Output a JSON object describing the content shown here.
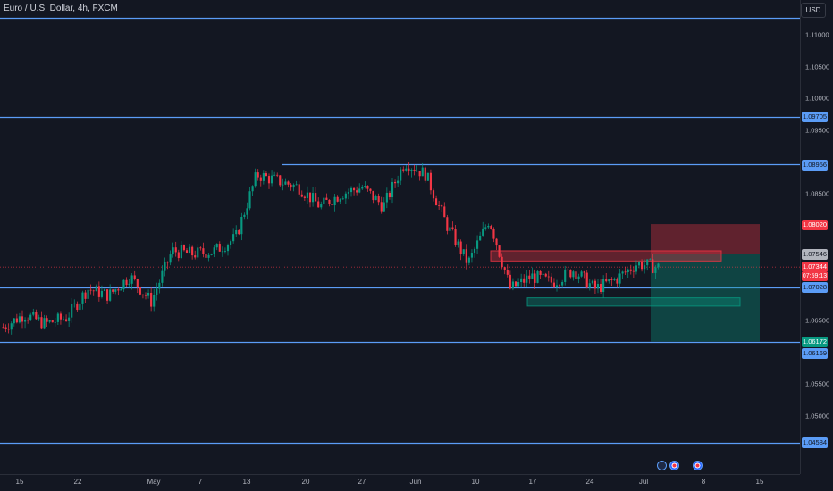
{
  "header": {
    "symbol": "Euro / U.S. Dollar",
    "interval": "4h",
    "exchange": "FXCM",
    "currency": "USD"
  },
  "price_tags": {
    "level_top": "1.09705",
    "level_resistance": "1.08956",
    "stop_loss": "1.08020",
    "entry_box": "1.07546",
    "current_price": "1.07344",
    "countdown": "07:59:13",
    "level_support": "1.07028",
    "take_profit": "1.06172",
    "level_low": "1.06169",
    "level_bottom": "1.04584"
  },
  "colors": {
    "background": "#131722",
    "up_candle": "#089981",
    "down_candle": "#f23645",
    "level_line": "#5b9cf6",
    "supply_zone": "#f23645",
    "demand_zone": "#089981"
  },
  "chart_data": {
    "type": "candlestick",
    "title": "Euro / U.S. Dollar, 4h, FXCM",
    "y_ticks": [
      "1.11000",
      "1.10500",
      "1.10000",
      "1.09500",
      "1.08500",
      "1.06500",
      "1.05500",
      "1.05000"
    ],
    "x_ticks": [
      "15",
      "22",
      "May",
      "7",
      "13",
      "20",
      "27",
      "Jun",
      "10",
      "17",
      "24",
      "Jul",
      "8",
      "15"
    ],
    "ylim": [
      1.044,
      1.113
    ],
    "horizontal_levels": [
      1.11273,
      1.09705,
      1.08956,
      1.07028,
      1.06169,
      1.04584
    ],
    "zones": [
      {
        "kind": "supply",
        "top": 1.076,
        "bottom": 1.0744
      },
      {
        "kind": "demand",
        "top": 1.0686,
        "bottom": 1.0673
      }
    ],
    "position": {
      "side": "short",
      "entry": 1.07546,
      "stop_loss": 1.0802,
      "take_profit": 1.06172
    },
    "close_path": [
      [
        "Apr 15",
        1.064
      ],
      [
        "Apr 17",
        1.066
      ],
      [
        "Apr 19",
        1.0645
      ],
      [
        "Apr 22",
        1.0655
      ],
      [
        "Apr 24",
        1.07
      ],
      [
        "Apr 26",
        1.069
      ],
      [
        "Apr 29",
        1.072
      ],
      [
        "May 1",
        1.068
      ],
      [
        "May 3",
        1.076
      ],
      [
        "May 7",
        1.0755
      ],
      [
        "May 9",
        1.076
      ],
      [
        "May 13",
        1.078
      ],
      [
        "May 15",
        1.088
      ],
      [
        "May 17",
        1.087
      ],
      [
        "May 20",
        1.086
      ],
      [
        "May 22",
        1.083
      ],
      [
        "May 24",
        1.085
      ],
      [
        "May 28",
        1.086
      ],
      [
        "May 30",
        1.083
      ],
      [
        "Jun 3",
        1.09
      ],
      [
        "Jun 5",
        1.088
      ],
      [
        "Jun 7",
        1.08
      ],
      [
        "Jun 11",
        1.074
      ],
      [
        "Jun 12",
        1.081
      ],
      [
        "Jun 14",
        1.07
      ],
      [
        "Jun 18",
        1.072
      ],
      [
        "Jun 20",
        1.071
      ],
      [
        "Jun 24",
        1.073
      ],
      [
        "Jun 26",
        1.07
      ],
      [
        "Jun 28",
        1.0715
      ],
      [
        "Jul 1",
        1.074
      ],
      [
        "Jul 2",
        1.0734
      ]
    ]
  }
}
